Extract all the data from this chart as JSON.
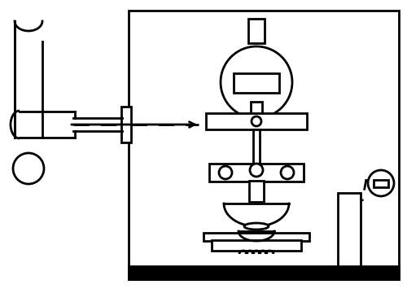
{
  "bg_color": "#ffffff",
  "line_color": "#000000",
  "lw": 2.0,
  "fig_width": 5.0,
  "fig_height": 3.71,
  "dpi": 100
}
